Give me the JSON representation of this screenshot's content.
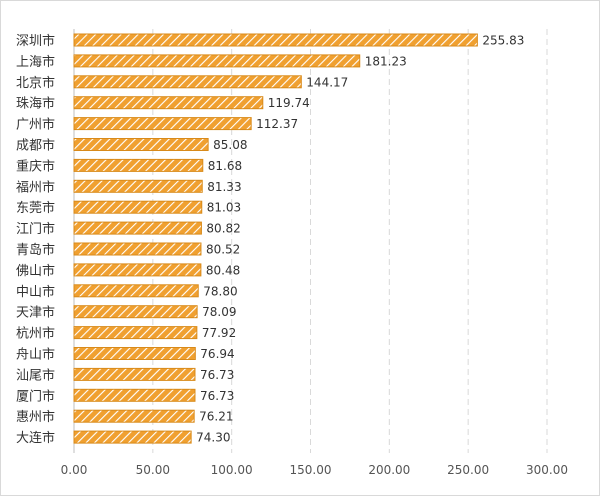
{
  "chart_data": {
    "type": "bar",
    "orientation": "horizontal",
    "title": "",
    "xlabel": "",
    "ylabel": "",
    "categories": [
      "深圳市",
      "上海市",
      "北京市",
      "珠海市",
      "广州市",
      "成都市",
      "重庆市",
      "福州市",
      "东莞市",
      "江门市",
      "青岛市",
      "佛山市",
      "中山市",
      "天津市",
      "杭州市",
      "舟山市",
      "汕尾市",
      "厦门市",
      "惠州市",
      "大连市"
    ],
    "values": [
      255.83,
      181.23,
      144.17,
      119.74,
      112.37,
      85.08,
      81.68,
      81.33,
      81.03,
      80.82,
      80.52,
      80.48,
      78.8,
      78.09,
      77.92,
      76.94,
      76.73,
      76.73,
      76.21,
      74.3
    ],
    "value_labels": [
      "255.83",
      "181.23",
      "144.17",
      "119.74",
      "112.37",
      "85.08",
      "81.68",
      "81.33",
      "81.03",
      "80.82",
      "80.52",
      "80.48",
      "78.80",
      "78.09",
      "77.92",
      "76.94",
      "76.73",
      "76.73",
      "76.21",
      "74.30"
    ],
    "xlim": [
      0,
      300
    ],
    "x_ticks": [
      0,
      50,
      100,
      150,
      200,
      250,
      300
    ],
    "x_tick_labels": [
      "0.00",
      "50.00",
      "100.00",
      "150.00",
      "200.00",
      "250.00",
      "300.00"
    ],
    "grid": "vertical dashed",
    "bar_color": "#f0a030",
    "bar_pattern": "diagonal hatch"
  }
}
